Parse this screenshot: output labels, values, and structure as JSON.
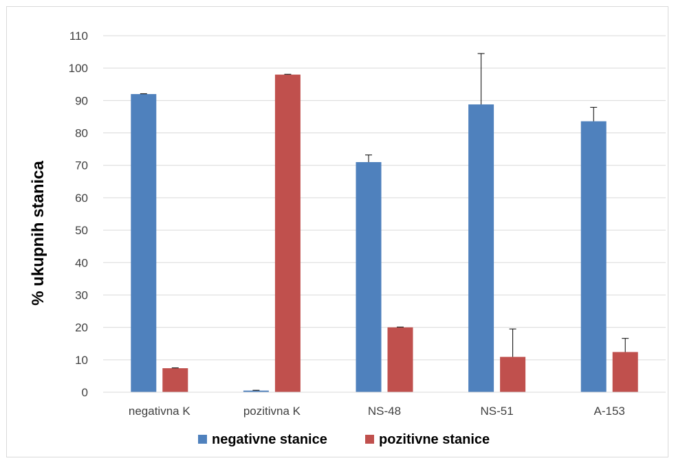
{
  "chart_data": {
    "type": "bar",
    "categories": [
      "negativna K",
      "pozitivna K",
      "NS-48",
      "NS-51",
      "A-153"
    ],
    "series": [
      {
        "name": "negativne stanice",
        "color": "#4f81bd",
        "values": [
          92,
          0.5,
          71,
          88.8,
          83.6
        ],
        "errors": [
          0.1,
          0.1,
          2.2,
          15.7,
          4.3
        ]
      },
      {
        "name": "pozitivne stanice",
        "color": "#c0504d",
        "values": [
          7.4,
          98,
          20,
          10.9,
          12.4
        ],
        "errors": [
          0.1,
          0.1,
          0.1,
          8.6,
          4.2
        ]
      }
    ],
    "ylabel": "% ukupnih stanica",
    "xlabel": "",
    "ylim": [
      0,
      110
    ],
    "yticks": [
      0,
      10,
      20,
      30,
      40,
      50,
      60,
      70,
      80,
      90,
      100,
      110
    ],
    "grid": true,
    "legend_position": "bottom"
  }
}
